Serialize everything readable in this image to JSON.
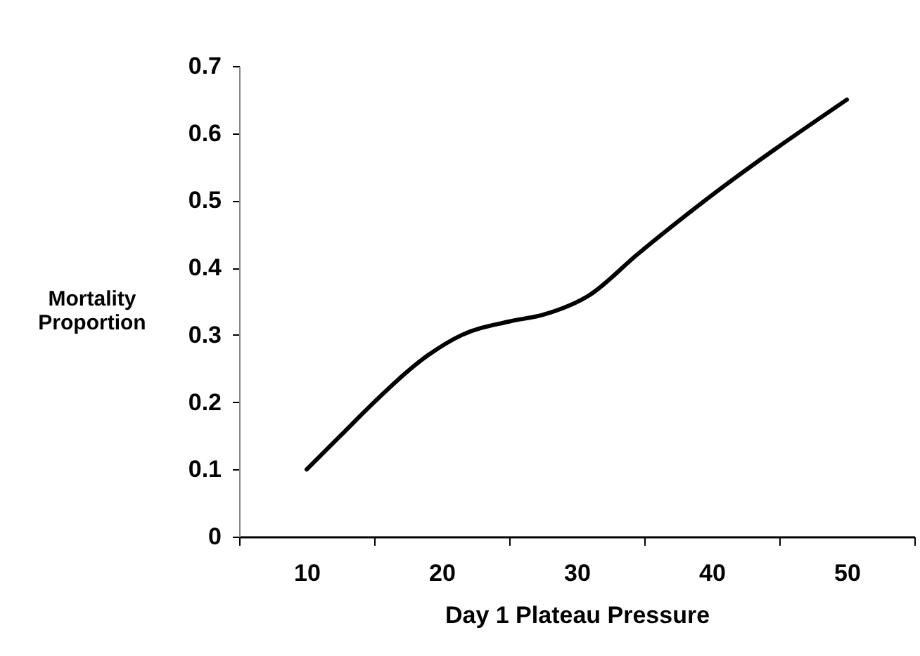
{
  "chart_data": {
    "type": "line",
    "xlabel": "Day 1 Plateau Pressure",
    "ylabel": "Mortality Proportion",
    "x": [
      10,
      12.5,
      15,
      19,
      21.5,
      25,
      27.5,
      31,
      34.5,
      39.5,
      50
    ],
    "series": [
      {
        "color": "#000000",
        "values": [
          0.1,
          0.15,
          0.2,
          0.27,
          0.3,
          0.32,
          0.33,
          0.36,
          0.42,
          0.5,
          0.65
        ]
      }
    ],
    "xlim": [
      5,
      55
    ],
    "xticks": [
      {
        "value": 5,
        "label": null
      },
      10,
      {
        "value": 15,
        "label": null
      },
      20,
      {
        "value": 25,
        "label": null
      },
      30,
      {
        "value": 35,
        "label": null
      },
      40,
      {
        "value": 45,
        "label": null
      },
      50,
      {
        "value": 55,
        "label": null
      }
    ],
    "ylim": [
      0,
      0.7
    ],
    "yticks": [
      0,
      0.1,
      0.2,
      0.3,
      0.4,
      0.5,
      0.6,
      0.7
    ],
    "grid": false,
    "legend": false,
    "marker": "none",
    "line_style": "solid"
  }
}
